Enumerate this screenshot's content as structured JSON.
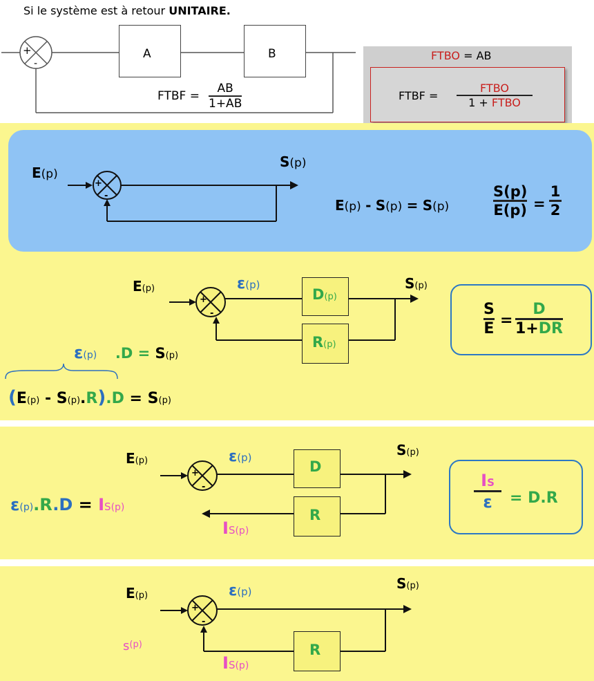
{
  "top": {
    "heading_prefix": "Si le système est à retour ",
    "heading_bold": "UNITAIRE.",
    "block_a": "A",
    "block_b": "B",
    "plus": "+",
    "minus": "-",
    "ftbf_label": "FTBF =",
    "ftbf_num": "AB",
    "ftbf_den": "1+AB"
  },
  "side_box": {
    "ftbo_word": "FTBO",
    "ftbo_rest": " = AB",
    "ftbf_label": "FTBF =",
    "num": "FTBO",
    "den_prefix": "1 + ",
    "den_word": "FTBO"
  },
  "unity": {
    "input": "E",
    "output": "S",
    "p": "(p)",
    "plus": "+",
    "minus": "-",
    "eq_e": "E",
    "eq_minus": "-",
    "eq_s1": "S",
    "eq_equals": "=",
    "eq_s2": "S",
    "ratio_num": "S(p)",
    "ratio_den": "E(p)",
    "ratio_eq": "=",
    "half_num": "1",
    "half_den": "2"
  },
  "feedback": {
    "input": "E",
    "output": "S",
    "epsilon": "ε",
    "p": "(p)",
    "block_d": "D",
    "block_r": "R",
    "eq1_eps": "ε",
    "eq1_mid": ".D = ",
    "eq1_s": "S",
    "eq2_open": "(",
    "eq2_e": "E",
    "eq2_minus": " - ",
    "eq2_s": "S",
    "eq2_dot": ".",
    "eq2_r": "R",
    "eq2_close": ")",
    "eq2_d": ".D",
    "eq2_equals": " = ",
    "eq2_s2": "S",
    "result_num": "S",
    "result_den": "E",
    "result_eq": "=",
    "result_rnum": "D",
    "result_rden_1": "1+",
    "result_rden_2": "DR"
  },
  "current": {
    "input": "E",
    "output": "S",
    "epsilon": "ε",
    "p": "(p)",
    "block_d": "D",
    "block_r": "R",
    "is_i": "I",
    "is_s": "S",
    "eq_eps": "ε",
    "eq_r": ".R",
    "eq_d": ".D",
    "eq_equals": " = ",
    "result_num_i": "I",
    "result_num_s": "S",
    "result_den": "ε",
    "result_eq": "= D.R"
  },
  "last": {
    "input": "E",
    "output": "S",
    "epsilon": "ε",
    "p": "(p)",
    "block_r": "R",
    "is_i": "I",
    "is_s": "S",
    "pink_s": "s",
    "pink_p": "(p)"
  },
  "colors": {
    "yellow": "#fbf68f",
    "blue_card": "#8fc3f4",
    "blue_text": "#2c6fbf",
    "green": "#33a84a",
    "pink": "#e64fc4",
    "red": "#c8201e"
  }
}
